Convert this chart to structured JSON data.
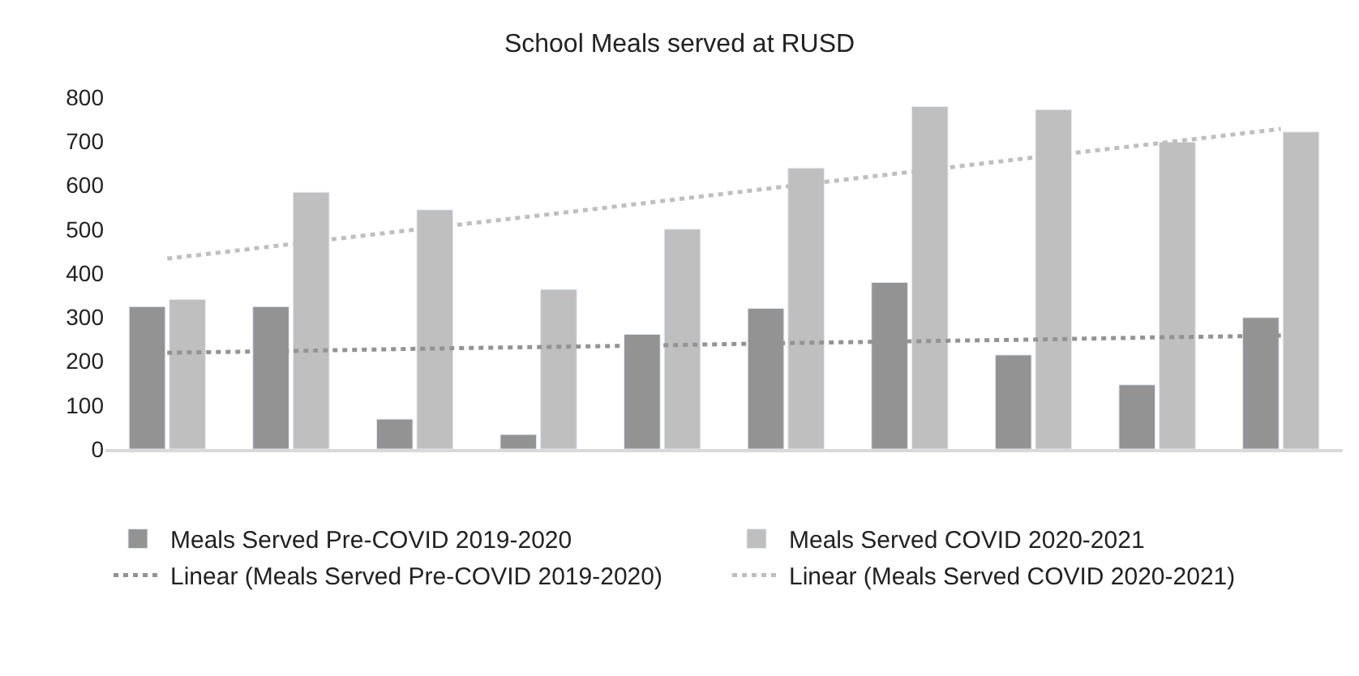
{
  "chart_data": {
    "type": "bar",
    "title": "School Meals served at RUSD",
    "categories": [
      null,
      null,
      null,
      null,
      null,
      null,
      null,
      null,
      null,
      null
    ],
    "series": [
      {
        "name": "Meals Served Pre-COVID 2019-2020",
        "color": "#939393",
        "values": [
          324,
          324,
          68,
          33,
          261,
          320,
          379,
          214,
          146,
          299
        ]
      },
      {
        "name": "Meals Served COVID 2020-2021",
        "color": "#bfbfbf",
        "values": [
          340,
          584,
          544,
          363,
          500,
          639,
          779,
          772,
          698,
          721
        ]
      },
      {
        "name": "Linear (Meals Served Pre-COVID 2019-2020)",
        "type": "line",
        "line_style": "dotted",
        "color": "#939393",
        "values": [
          219,
          223,
          228,
          232,
          236,
          241,
          245,
          249,
          254,
          258
        ]
      },
      {
        "name": "Linear (Meals Served COVID 2020-2021)",
        "type": "line",
        "line_style": "dotted",
        "color": "#bfbfbf",
        "values": [
          433,
          466,
          499,
          531,
          564,
          597,
          630,
          663,
          695,
          728
        ]
      }
    ],
    "ylim": [
      0,
      800
    ],
    "yticks": [
      0,
      100,
      200,
      300,
      400,
      500,
      600,
      700,
      800
    ],
    "legend": "bottom",
    "tick_labels": "y"
  }
}
